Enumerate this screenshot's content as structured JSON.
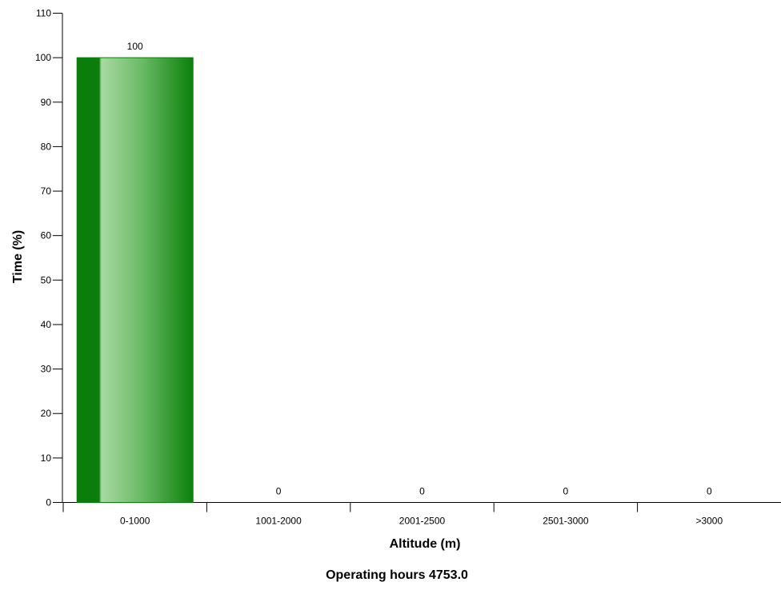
{
  "chart_data": {
    "type": "bar",
    "categories": [
      "0-1000",
      "1001-2000",
      "2001-2500",
      "2501-3000",
      ">3000"
    ],
    "values": [
      100,
      0,
      0,
      0,
      0
    ],
    "data_labels": [
      "100",
      "0",
      "0",
      "0",
      "0"
    ],
    "xlabel": "Altitude (m)",
    "ylabel": "Time (%)",
    "ylim": [
      0,
      110
    ],
    "yticks": [
      0,
      10,
      20,
      30,
      40,
      50,
      60,
      70,
      80,
      90,
      100,
      110
    ],
    "grid": false,
    "bar_color": "#008000",
    "bar_highlight_color": "#a6d9a0"
  },
  "footer": {
    "text": "Operating hours 4753.0"
  }
}
